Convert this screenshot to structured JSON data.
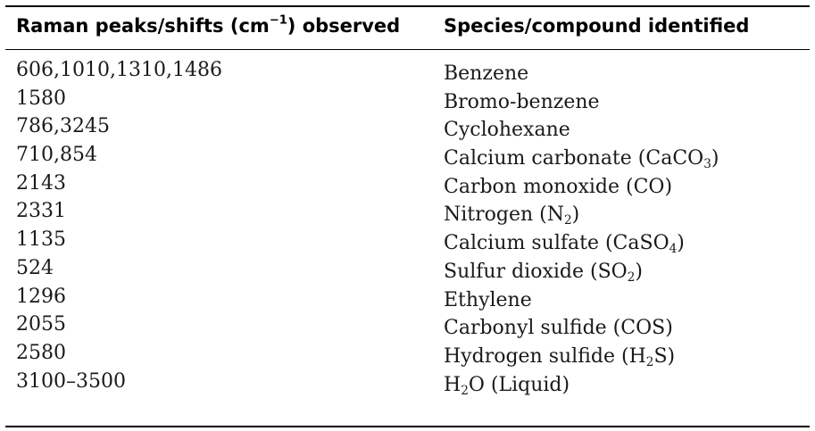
{
  "table": {
    "headers": {
      "col1_main": "Raman peaks/shifts (cm",
      "col1_sup": "−1",
      "col1_tail": ") observed",
      "col2": "Species/compound identified"
    },
    "rows": [
      {
        "peaks": "606,1010,1310,1486",
        "species": [
          {
            "t": "Benzene"
          }
        ]
      },
      {
        "peaks": "1580",
        "species": [
          {
            "t": "Bromo-benzene"
          }
        ]
      },
      {
        "peaks": "786,3245",
        "species": [
          {
            "t": "Cyclohexane"
          }
        ]
      },
      {
        "peaks": "710,854",
        "species": [
          {
            "t": "Calcium carbonate (CaCO"
          },
          {
            "sub": "3"
          },
          {
            "t": ")"
          }
        ]
      },
      {
        "peaks": "2143",
        "species": [
          {
            "t": "Carbon monoxide (CO)"
          }
        ]
      },
      {
        "peaks": "2331",
        "species": [
          {
            "t": "Nitrogen (N"
          },
          {
            "sub": "2"
          },
          {
            "t": ")"
          }
        ]
      },
      {
        "peaks": "1135",
        "species": [
          {
            "t": "Calcium sulfate (CaSO"
          },
          {
            "sub": "4"
          },
          {
            "t": ")"
          }
        ]
      },
      {
        "peaks": "524",
        "species": [
          {
            "t": "Sulfur dioxide (SO"
          },
          {
            "sub": "2"
          },
          {
            "t": ")"
          }
        ]
      },
      {
        "peaks": "1296",
        "species": [
          {
            "t": "Ethylene"
          }
        ]
      },
      {
        "peaks": "2055",
        "species": [
          {
            "t": "Carbonyl sulfide (COS)"
          }
        ]
      },
      {
        "peaks": "2580",
        "species": [
          {
            "t": "Hydrogen sulfide (H"
          },
          {
            "sub": "2"
          },
          {
            "t": "S)"
          }
        ]
      },
      {
        "peaks": "3100–3500",
        "species": [
          {
            "t": "H"
          },
          {
            "sub": "2"
          },
          {
            "t": "O (Liquid)"
          }
        ]
      }
    ]
  }
}
